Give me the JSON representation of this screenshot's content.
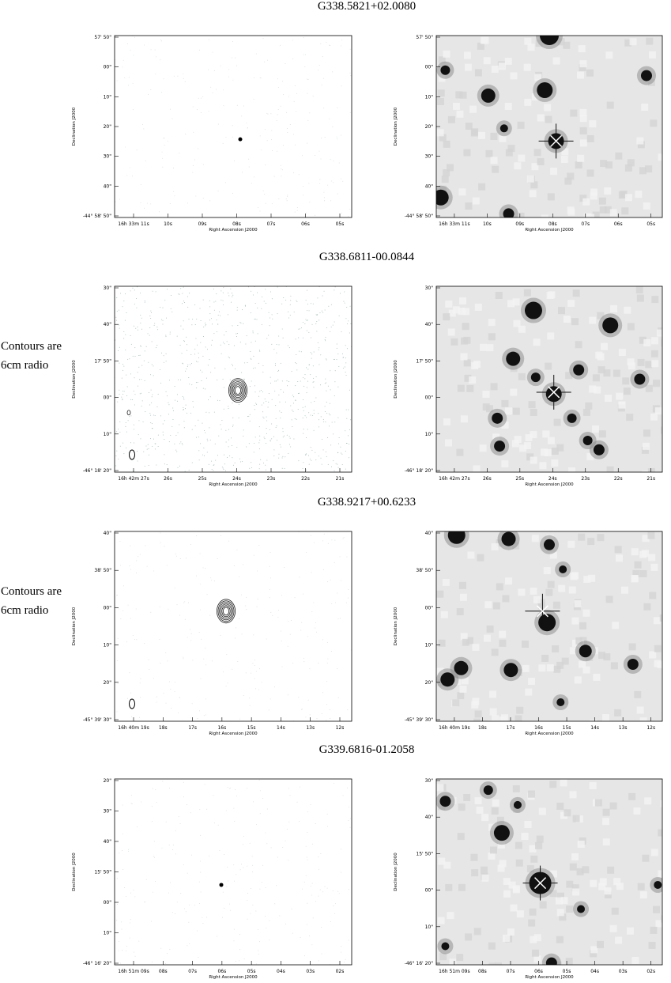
{
  "figure": {
    "rows": [
      {
        "title": "G338.5821+02.0080",
        "left": {
          "xlabel": "Right Ascension J2000",
          "ylabel": "Declination J2000",
          "xticks": [
            "16h 33m 11s",
            "10s",
            "09s",
            "08s",
            "07s",
            "06s",
            "05s"
          ],
          "yticks": [
            "57' 50\"",
            "00\"",
            "10\"",
            "20\"",
            "30\"",
            "40\"",
            "-44° 58' 50\""
          ]
        },
        "right": {
          "xlabel": "Right Ascension J2000",
          "ylabel": "Declination J2000",
          "xticks": [
            "16h 33m 11s",
            "10s",
            "09s",
            "08s",
            "07s",
            "06s",
            "05s"
          ],
          "yticks": [
            "57' 50\"",
            "00\"",
            "10\"",
            "20\"",
            "30\"",
            "40\"",
            "-44° 58' 50\""
          ]
        }
      },
      {
        "title": "G338.6811-00.0844",
        "note": [
          "Contours are",
          "6cm radio"
        ],
        "left": {
          "xlabel": "Right Ascension J2000",
          "ylabel": "Declination J2000",
          "xticks": [
            "16h 42m 27s",
            "26s",
            "25s",
            "24s",
            "23s",
            "22s",
            "21s"
          ],
          "yticks": [
            "30\"",
            "40\"",
            "17' 50\"",
            "00\"",
            "10\"",
            "-46° 18' 20\""
          ]
        },
        "right": {
          "xlabel": "Right Ascension J2000",
          "ylabel": "Declination J2000",
          "xticks": [
            "16h 42m 27s",
            "26s",
            "25s",
            "24s",
            "23s",
            "22s",
            "21s"
          ],
          "yticks": [
            "30\"",
            "40\"",
            "17' 50\"",
            "00\"",
            "10\"",
            "-46° 18' 20\""
          ]
        }
      },
      {
        "title": "G338.9217+00.6233",
        "note": [
          "Contours are",
          "6cm radio"
        ],
        "left": {
          "xlabel": "Right Ascension J2000",
          "ylabel": "Declination J2000",
          "xticks": [
            "16h 40m 19s",
            "18s",
            "17s",
            "16s",
            "15s",
            "14s",
            "13s",
            "12s"
          ],
          "yticks": [
            "40\"",
            "38' 50\"",
            "00\"",
            "10\"",
            "20\"",
            "-45° 39' 30\""
          ]
        },
        "right": {
          "xlabel": "Right Ascension J2000",
          "ylabel": "Declination J2000",
          "xticks": [
            "16h 40m 19s",
            "18s",
            "17s",
            "16s",
            "15s",
            "14s",
            "13s",
            "12s"
          ],
          "yticks": [
            "40\"",
            "38' 50\"",
            "00\"",
            "10\"",
            "20\"",
            "-45° 39' 30\""
          ]
        }
      },
      {
        "title": "G339.6816-01.2058",
        "left": {
          "xlabel": "Right Ascension J2000",
          "ylabel": "Declination J2000",
          "xticks": [
            "16h 51m 09s",
            "08s",
            "07s",
            "06s",
            "05s",
            "04s",
            "03s",
            "02s"
          ],
          "yticks": [
            "20\"",
            "30\"",
            "40\"",
            "15' 50\"",
            "00\"",
            "10\"",
            "-46° 16' 20\""
          ]
        },
        "right": {
          "xlabel": "Right Ascension J2000",
          "ylabel": "Declination J2000",
          "xticks": [
            "16h 51m 09s",
            "08s",
            "07s",
            "06s",
            "05s",
            "04s",
            "03s",
            "02s"
          ],
          "yticks": [
            "30\"",
            "40\"",
            "15' 50\"",
            "00\"",
            "10\"",
            "-46° 16' 20\""
          ]
        }
      }
    ]
  }
}
